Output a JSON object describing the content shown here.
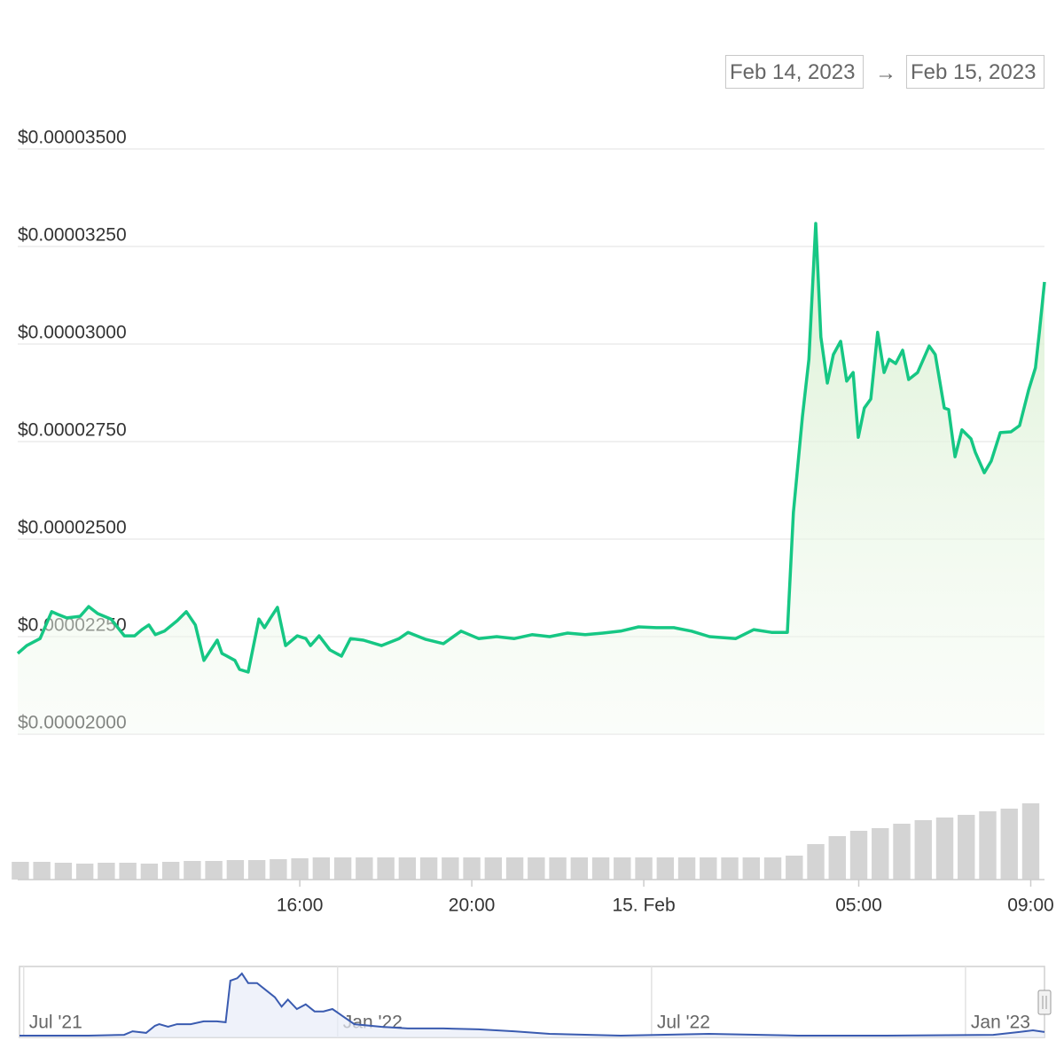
{
  "date_range": {
    "from": "Feb 14, 2023",
    "separator": "→",
    "to": "Feb 15, 2023"
  },
  "chart_data": {
    "type": "line",
    "color": "#16c784",
    "grid": true,
    "x": [
      9.44,
      9.65,
      9.96,
      10.23,
      10.37,
      10.58,
      10.89,
      11.09,
      11.3,
      11.61,
      11.92,
      12.16,
      12.33,
      12.49,
      12.64,
      12.85,
      13.15,
      13.36,
      13.57,
      13.77,
      14.08,
      14.19,
      14.49,
      14.6,
      14.8,
      15.05,
      15.18,
      15.32,
      15.48,
      15.67,
      15.94,
      16.14,
      16.25,
      16.45,
      16.7,
      16.97,
      17.18,
      17.48,
      17.9,
      18.31,
      18.52,
      18.93,
      19.34,
      19.75,
      20.16,
      20.58,
      20.99,
      21.4,
      21.81,
      22.23,
      22.64,
      23.05,
      23.46,
      23.88,
      24.29,
      24.7,
      25.11,
      25.53,
      26.14,
      26.56,
      26.97,
      27.34,
      27.48,
      27.69,
      27.84,
      28.0,
      28.12,
      28.27,
      28.41,
      28.58,
      28.72,
      28.87,
      28.99,
      29.13,
      29.28,
      29.44,
      29.59,
      29.71,
      29.86,
      30.02,
      30.16,
      30.37,
      30.64,
      30.78,
      30.99,
      31.09,
      31.24,
      31.4,
      31.61,
      31.71,
      31.92,
      32.08,
      32.29,
      32.54,
      32.74,
      32.95,
      33.11,
      33.2,
      33.32
    ],
    "values": [
      2.207e-05,
      2.227e-05,
      2.245e-05,
      2.314e-05,
      2.307e-05,
      2.298e-05,
      2.302e-05,
      2.327e-05,
      2.309e-05,
      2.295e-05,
      2.252e-05,
      2.252e-05,
      2.268e-05,
      2.28e-05,
      2.255e-05,
      2.264e-05,
      2.291e-05,
      2.314e-05,
      2.28e-05,
      2.189e-05,
      2.241e-05,
      2.207e-05,
      2.189e-05,
      2.166e-05,
      2.159e-05,
      2.295e-05,
      2.273e-05,
      2.298e-05,
      2.325e-05,
      2.227e-05,
      2.252e-05,
      2.245e-05,
      2.227e-05,
      2.252e-05,
      2.216e-05,
      2.2e-05,
      2.245e-05,
      2.241e-05,
      2.227e-05,
      2.245e-05,
      2.261e-05,
      2.243e-05,
      2.232e-05,
      2.264e-05,
      2.245e-05,
      2.25e-05,
      2.245e-05,
      2.255e-05,
      2.25e-05,
      2.259e-05,
      2.255e-05,
      2.259e-05,
      2.264e-05,
      2.275e-05,
      2.273e-05,
      2.273e-05,
      2.264e-05,
      2.25e-05,
      2.245e-05,
      2.268e-05,
      2.261e-05,
      2.261e-05,
      2.568e-05,
      2.814e-05,
      2.961e-05,
      3.309e-05,
      3.018e-05,
      2.9e-05,
      2.973e-05,
      3.007e-05,
      2.905e-05,
      2.927e-05,
      2.761e-05,
      2.836e-05,
      2.859e-05,
      3.03e-05,
      2.927e-05,
      2.961e-05,
      2.95e-05,
      2.984e-05,
      2.909e-05,
      2.927e-05,
      2.995e-05,
      2.973e-05,
      2.836e-05,
      2.832e-05,
      2.711e-05,
      2.78e-05,
      2.757e-05,
      2.723e-05,
      2.67e-05,
      2.7e-05,
      2.773e-05,
      2.775e-05,
      2.791e-05,
      2.882e-05,
      2.939e-05,
      3.03e-05,
      3.159e-05
    ],
    "xlim": [
      9.44,
      33.32
    ],
    "xticks": [
      {
        "value": 16,
        "label": "16:00"
      },
      {
        "value": 20,
        "label": "20:00"
      },
      {
        "value": 24,
        "label": "15. Feb"
      },
      {
        "value": 29,
        "label": "05:00"
      },
      {
        "value": 33,
        "label": "09:00"
      }
    ],
    "ylim": [
      2e-05,
      3.5e-05
    ],
    "yticks": [
      {
        "value": 3.5e-05,
        "label": "$0.00003500"
      },
      {
        "value": 3.25e-05,
        "label": "$0.00003250"
      },
      {
        "value": 3e-05,
        "label": "$0.00003000"
      },
      {
        "value": 2.75e-05,
        "label": "$0.00002750"
      },
      {
        "value": 2.5e-05,
        "label": "$0.00002500"
      },
      {
        "value": 2.25e-05,
        "label": "$0.00002250"
      },
      {
        "value": 2e-05,
        "label": "$0.00002000"
      }
    ],
    "volume": {
      "color": "#d4d4d4",
      "ylim": [
        0,
        100
      ],
      "x": [
        9.5,
        10,
        10.5,
        11,
        11.5,
        12,
        12.5,
        13,
        13.5,
        14,
        14.5,
        15,
        15.5,
        16,
        16.5,
        17,
        17.5,
        18,
        18.5,
        19,
        19.5,
        20,
        20.5,
        21,
        21.5,
        22,
        22.5,
        23,
        23.5,
        24,
        24.5,
        25,
        25.5,
        26,
        26.5,
        27,
        27.5,
        28,
        28.5,
        29,
        29.5,
        30,
        30.5,
        31,
        31.5,
        32,
        32.5,
        33
      ],
      "values": [
        20,
        20,
        19,
        18,
        19,
        19,
        18,
        20,
        21,
        21,
        22,
        22,
        23,
        24,
        25,
        25,
        25,
        25,
        25,
        25,
        25,
        25,
        25,
        25,
        25,
        25,
        25,
        25,
        25,
        25,
        25,
        25,
        25,
        25,
        25,
        25,
        27,
        40,
        49,
        55,
        58,
        63,
        67,
        70,
        73,
        77,
        80,
        86
      ]
    },
    "navigator": {
      "color": "#3a5bb0",
      "x": [
        5.92,
        7.24,
        7.92,
        8.08,
        8.34,
        8.51,
        8.59,
        8.76,
        8.93,
        9.19,
        9.44,
        9.69,
        9.86,
        9.95,
        10.08,
        10.17,
        10.29,
        10.46,
        10.63,
        10.8,
        10.93,
        11.05,
        11.22,
        11.39,
        11.56,
        11.73,
        11.9,
        12.07,
        12.32,
        12.83,
        13.34,
        14.02,
        14.69,
        15.37,
        16.05,
        17.41,
        19.1,
        20.8,
        22.49,
        24.53,
        25.03,
        25.29,
        25.51
      ],
      "values": [
        7.5e-06,
        7.5e-06,
        1.1e-05,
        2.6e-05,
        1.9e-05,
        4.9e-05,
        5.6e-05,
        4.5e-05,
        5.6e-05,
        5.6e-05,
        6.8e-05,
        6.8e-05,
        6.4e-05,
        0.00024,
        0.00025,
        0.00027,
        0.00023,
        0.00023,
        0.0002,
        0.00017,
        0.00013,
        0.00016,
        0.00012,
        0.00014,
        0.00011,
        0.00011,
        0.00012,
        9.4e-05,
        5.6e-05,
        4.5e-05,
        3.8e-05,
        3.8e-05,
        3.4e-05,
        2.6e-05,
        1.5e-05,
        7.5e-06,
        1.5e-05,
        7.5e-06,
        7.5e-06,
        1.1e-05,
        2.3e-05,
        3e-05,
        2.3e-05
      ],
      "xlim": [
        5.92,
        25.51
      ],
      "ylim": [
        0,
        0.0003
      ],
      "xticks": [
        {
          "value": 6,
          "label": "Jul '21"
        },
        {
          "value": 12,
          "label": "Jan '22"
        },
        {
          "value": 18,
          "label": "Jul '22"
        },
        {
          "value": 24,
          "label": "Jan '23"
        }
      ]
    }
  }
}
